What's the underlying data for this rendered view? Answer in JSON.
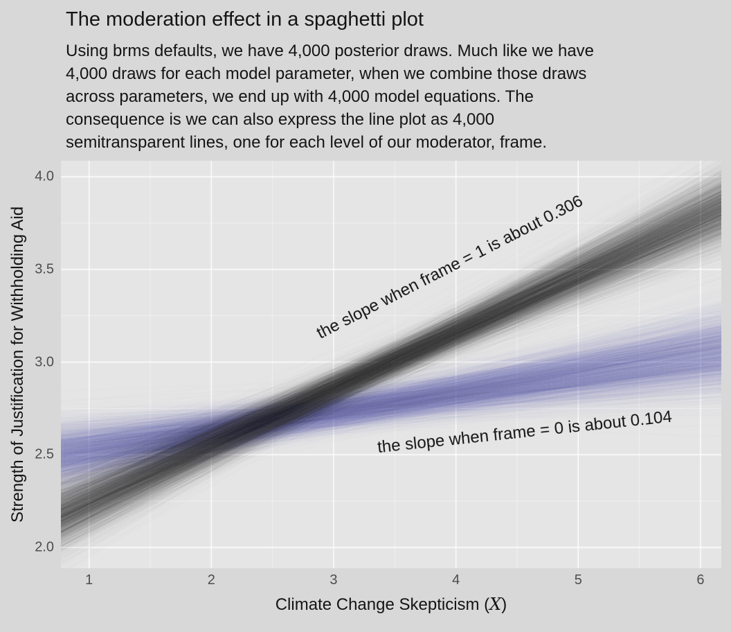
{
  "chart_data": {
    "type": "line",
    "variant": "spaghetti",
    "title": "The moderation effect in a spaghetti plot",
    "subtitle_lines": [
      "Using brms defaults, we have 4,000 posterior draws. Much like we have",
      "4,000 draws for each model parameter, when we combine those draws",
      "across parameters, we end up with 4,000 model equations. The",
      "consequence is we can also express the line plot as 4,000",
      "semitransparent lines, one for each level of our moderator, frame."
    ],
    "xlabel": {
      "prefix": "Climate Change Skepticism (",
      "var": "X",
      "suffix": ")"
    },
    "ylabel": "Strength of Justification for Withholding Aid",
    "xlim": [
      0.77,
      6.17
    ],
    "ylim": [
      1.888,
      4.086
    ],
    "x_ticks": {
      "values": [
        1,
        2,
        3,
        4,
        5,
        6
      ],
      "labels": [
        "1",
        "2",
        "3",
        "4",
        "5",
        "6"
      ]
    },
    "y_ticks": {
      "values": [
        2.0,
        2.5,
        3.0,
        3.5,
        4.0
      ],
      "labels": [
        "2.0",
        "2.5",
        "3.0",
        "3.5",
        "4.0"
      ]
    },
    "grid": {
      "major_color": "#ffffff",
      "minor_color": "#ffffff",
      "minor_alpha": 0.65,
      "major_width": 1.4,
      "minor_width": 0.8
    },
    "panel_bg": "#e5e5e5",
    "page_bg": "#d8d8d8",
    "n_draws_per_group": 4000,
    "series": [
      {
        "name": "frame = 0",
        "color": "#7596b5",
        "slope_mean": 0.104,
        "slope_sd": 0.033,
        "pivot_x": 3.0,
        "pivot_y_mean": 2.73,
        "pivot_y_sd": 0.05,
        "alpha": 0.022
      },
      {
        "name": "frame = 1",
        "color": "#31512f",
        "slope_mean": 0.306,
        "slope_sd": 0.033,
        "pivot_x": 3.3,
        "pivot_y_mean": 2.95,
        "pivot_y_sd": 0.05,
        "alpha": 0.022
      }
    ],
    "annotations": [
      {
        "text": "the slope when frame = 1 is about 0.306",
        "x": 3.95,
        "y": 3.51,
        "angle_deg": -27
      },
      {
        "text": "the slope when frame = 0 is about 0.104",
        "x": 4.56,
        "y": 2.62,
        "angle_deg": -6
      }
    ]
  }
}
